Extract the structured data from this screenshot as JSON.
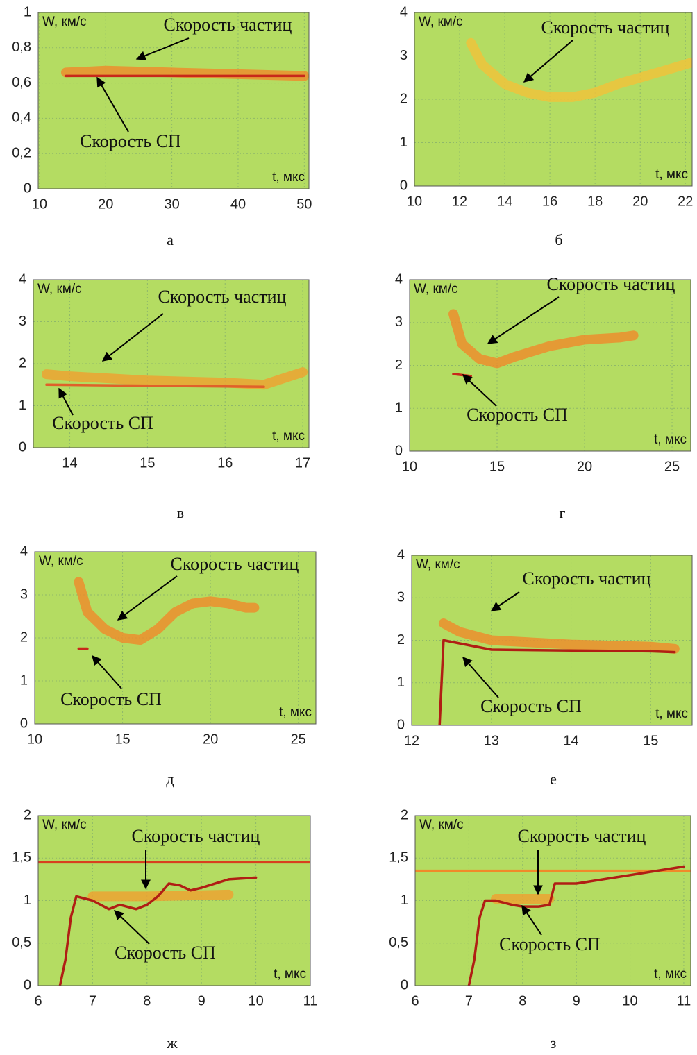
{
  "chart_data": [
    {
      "type": "line",
      "y_label": "W, км/с",
      "x_label": "t, мкс",
      "caption": "а",
      "particles_label": "Скорость частиц",
      "sp_label": "Скорость СП",
      "xlim": [
        9.8,
        50.7
      ],
      "ylim": [
        0,
        1
      ],
      "xticks": [
        10,
        20,
        30,
        40,
        50
      ],
      "yticks": [
        0,
        {
          "value": 0.2,
          "label": "0,2"
        },
        {
          "value": 0.4,
          "label": "0,4"
        },
        {
          "value": 0.6,
          "label": "0,6"
        },
        {
          "value": 0.8,
          "label": "0,8"
        },
        1
      ],
      "grid": true,
      "background": "#b4dc62",
      "lines": [
        {
          "style": "band",
          "color": "#f08a2a",
          "x": [
            14,
            20,
            30,
            40,
            50
          ],
          "values": [
            0.66,
            0.67,
            0.66,
            0.65,
            0.64
          ]
        },
        {
          "style": "line",
          "color": "#c8281a",
          "x": [
            14,
            50
          ],
          "values": [
            0.64,
            0.64
          ]
        }
      ]
    },
    {
      "type": "line",
      "y_label": "W, км/с",
      "x_label": "t, мкс",
      "caption": "б",
      "particles_label": "Скорость частиц",
      "xlim": [
        10,
        22.3
      ],
      "ylim": [
        0,
        4
      ],
      "xticks": [
        10,
        12,
        14,
        16,
        18,
        20,
        22
      ],
      "yticks": [
        0,
        1,
        2,
        3,
        4
      ],
      "grid": true,
      "background": "#b4dc62",
      "lines": [
        {
          "style": "band",
          "color": "#f2c23a",
          "x": [
            12.5,
            13,
            14,
            15,
            16,
            17,
            18,
            19,
            20,
            21,
            22.3
          ],
          "values": [
            3.3,
            2.8,
            2.35,
            2.15,
            2.05,
            2.05,
            2.15,
            2.35,
            2.5,
            2.65,
            2.85
          ]
        }
      ]
    },
    {
      "type": "line",
      "y_label": "W, км/с",
      "x_label": "t, мкс",
      "caption": "в",
      "particles_label": "Скорость частиц",
      "sp_label": "Скорость СП",
      "xlim": [
        13.53,
        17.08
      ],
      "ylim": [
        0,
        4
      ],
      "xticks": [
        14,
        15,
        16,
        17
      ],
      "yticks": [
        0,
        1,
        2,
        3,
        4
      ],
      "grid": true,
      "background": "#b4dc62",
      "lines": [
        {
          "style": "band",
          "color": "#f0a030",
          "x": [
            13.7,
            14,
            15,
            16,
            16.5,
            17
          ],
          "values": [
            1.75,
            1.7,
            1.6,
            1.55,
            1.5,
            1.8
          ]
        },
        {
          "style": "line",
          "color": "#e0602a",
          "x": [
            13.7,
            16.5
          ],
          "values": [
            1.5,
            1.45
          ]
        }
      ]
    },
    {
      "type": "line",
      "y_label": "W, км/с",
      "x_label": "t, мкс",
      "caption": "г",
      "particles_label": "Скорость частиц",
      "sp_label": "Скорость СП",
      "xlim": [
        10,
        26.07
      ],
      "ylim": [
        0,
        4
      ],
      "xticks": [
        10,
        15,
        20,
        25
      ],
      "yticks": [
        0,
        1,
        2,
        3,
        4
      ],
      "grid": true,
      "background": "#b4dc62",
      "lines": [
        {
          "style": "band",
          "color": "#f08a2a",
          "x": [
            12.5,
            13,
            14,
            15,
            16,
            18,
            20,
            22,
            22.8
          ],
          "values": [
            3.2,
            2.5,
            2.15,
            2.05,
            2.2,
            2.45,
            2.6,
            2.65,
            2.7
          ]
        },
        {
          "style": "line",
          "color": "#c8281a",
          "x": [
            12.5,
            13.5
          ],
          "values": [
            1.8,
            1.75
          ]
        }
      ]
    },
    {
      "type": "line",
      "y_label": "W, км/с",
      "x_label": "t, мкс",
      "caption": "д",
      "particles_label": "Скорость частиц",
      "sp_label": "Скорость СП",
      "xlim": [
        10,
        26
      ],
      "ylim": [
        0,
        4
      ],
      "xticks": [
        10,
        15,
        20,
        25
      ],
      "yticks": [
        0,
        1,
        2,
        3,
        4
      ],
      "grid": true,
      "background": "#b4dc62",
      "lines": [
        {
          "style": "band",
          "color": "#f08a2a",
          "x": [
            12.5,
            13,
            14,
            15,
            16,
            17,
            18,
            19,
            20,
            21,
            22,
            22.5
          ],
          "values": [
            3.3,
            2.6,
            2.2,
            2.0,
            1.95,
            2.2,
            2.6,
            2.8,
            2.85,
            2.8,
            2.7,
            2.7
          ]
        },
        {
          "style": "line",
          "color": "#c8281a",
          "x": [
            12.5,
            13
          ],
          "values": [
            1.75,
            1.75
          ]
        }
      ]
    },
    {
      "type": "line",
      "y_label": "W, км/с",
      "x_label": "t, мкс",
      "caption": "е",
      "particles_label": "Скорость частиц",
      "sp_label": "Скорость СП",
      "xlim": [
        12,
        15.52
      ],
      "ylim": [
        0,
        4
      ],
      "xticks": [
        12,
        13,
        14,
        15
      ],
      "yticks": [
        0,
        1,
        2,
        3,
        4
      ],
      "grid": true,
      "background": "#b4dc62",
      "lines": [
        {
          "style": "band",
          "color": "#f08a2a",
          "x": [
            12.4,
            12.6,
            13,
            14,
            15,
            15.3
          ],
          "values": [
            2.4,
            2.2,
            2.0,
            1.9,
            1.85,
            1.8
          ]
        },
        {
          "style": "line",
          "color": "#b01e14",
          "x": [
            12.35,
            12.4,
            13,
            14,
            15,
            15.3
          ],
          "values": [
            0,
            2.0,
            1.78,
            1.76,
            1.74,
            1.72
          ]
        }
      ]
    },
    {
      "type": "line",
      "y_label": "W, км/с",
      "x_label": "t, мкс",
      "caption": "ж",
      "particles_label": "Скорость частиц",
      "sp_label": "Скорость СП",
      "xlim": [
        6,
        11
      ],
      "ylim": [
        0,
        2
      ],
      "xticks": [
        6,
        7,
        8,
        9,
        10,
        11
      ],
      "yticks": [
        0,
        {
          "value": 0.5,
          "label": "0,5"
        },
        1,
        {
          "value": 1.5,
          "label": "1,5"
        },
        2
      ],
      "grid": true,
      "background": "#b4dc62",
      "lines": [
        {
          "style": "band",
          "color": "#f0a030",
          "x": [
            7,
            8,
            9.5
          ],
          "values": [
            1.05,
            1.05,
            1.07
          ]
        },
        {
          "style": "line",
          "color": "#d8401e",
          "x": [
            6,
            11
          ],
          "values": [
            1.45,
            1.45
          ]
        },
        {
          "style": "line",
          "color": "#b01e14",
          "x": [
            6.4,
            6.5,
            6.6,
            6.7,
            7,
            7.3,
            7.5,
            7.8,
            8,
            8.2,
            8.4,
            8.6,
            8.8,
            9,
            9.5,
            10
          ],
          "values": [
            0,
            0.3,
            0.8,
            1.05,
            1.0,
            0.9,
            0.95,
            0.9,
            0.95,
            1.05,
            1.2,
            1.18,
            1.12,
            1.15,
            1.25,
            1.27
          ]
        }
      ]
    },
    {
      "type": "line",
      "y_label": "W, км/с",
      "x_label": "t, мкс",
      "caption": "з",
      "particles_label": "Скорость частиц",
      "sp_label": "Скорость СП",
      "xlim": [
        6,
        11.13
      ],
      "ylim": [
        0,
        2
      ],
      "xticks": [
        6,
        7,
        8,
        9,
        10,
        11
      ],
      "yticks": [
        0,
        {
          "value": 0.5,
          "label": "0,5"
        },
        1,
        {
          "value": 1.5,
          "label": "1,5"
        },
        2
      ],
      "grid": true,
      "background": "#b4dc62",
      "lines": [
        {
          "style": "band",
          "color": "#f0a030",
          "x": [
            7.5,
            8,
            8.5
          ],
          "values": [
            1.02,
            1.02,
            1.02
          ]
        },
        {
          "style": "line",
          "color": "#f08a2a",
          "x": [
            6,
            11.13
          ],
          "values": [
            1.35,
            1.35
          ]
        },
        {
          "style": "line",
          "color": "#b01e14",
          "x": [
            7,
            7.1,
            7.2,
            7.3,
            7.5,
            7.8,
            8,
            8.3,
            8.5,
            8.6,
            9,
            9.5,
            10,
            10.5,
            11
          ],
          "values": [
            0,
            0.3,
            0.8,
            1.0,
            1.0,
            0.95,
            0.93,
            0.93,
            0.95,
            1.2,
            1.2,
            1.25,
            1.3,
            1.35,
            1.4
          ]
        }
      ]
    }
  ]
}
